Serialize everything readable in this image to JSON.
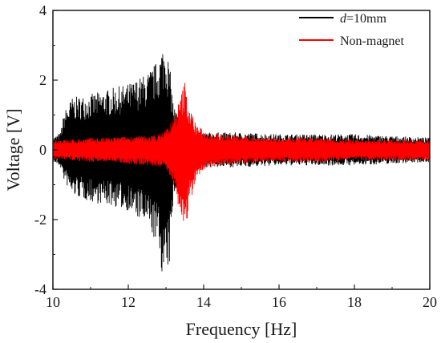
{
  "chart_data": {
    "type": "line",
    "xlabel": "Frequency [Hz]",
    "ylabel": "Voltage [V]",
    "xlim": [
      10,
      20
    ],
    "ylim": [
      -4,
      4
    ],
    "x_ticks": [
      10,
      12,
      14,
      16,
      18,
      20
    ],
    "y_ticks": [
      -4,
      -2,
      0,
      2,
      4
    ],
    "legend_position": "top-right",
    "grid": false,
    "series": [
      {
        "name": "d=10mm",
        "name_italic_part": "d",
        "name_rest": "=10mm",
        "color": "#000000",
        "style": "oscillating band; amplitude envelope",
        "x": [
          10.0,
          10.2,
          10.3,
          10.5,
          11.0,
          11.5,
          12.0,
          12.5,
          12.8,
          12.9,
          13.0,
          13.1,
          13.2,
          13.4,
          13.6,
          13.8,
          14.0,
          15.0,
          16.0,
          17.0,
          18.0,
          19.0,
          20.0
        ],
        "upper": [
          0.35,
          0.5,
          1.1,
          1.5,
          1.6,
          1.75,
          1.9,
          2.2,
          2.6,
          3.0,
          3.05,
          2.4,
          1.3,
          0.8,
          0.65,
          0.5,
          0.5,
          0.5,
          0.45,
          0.45,
          0.45,
          0.4,
          0.35
        ],
        "lower": [
          -0.35,
          -0.5,
          -0.9,
          -1.3,
          -1.5,
          -1.6,
          -1.75,
          -2.2,
          -2.8,
          -3.6,
          -3.8,
          -3.3,
          -1.3,
          -0.8,
          -0.65,
          -0.55,
          -0.5,
          -0.5,
          -0.45,
          -0.45,
          -0.45,
          -0.4,
          -0.35
        ]
      },
      {
        "name": "Non-magnet",
        "color": "#ff0000",
        "style": "oscillating band; amplitude envelope",
        "x": [
          10.0,
          10.5,
          11.0,
          11.5,
          12.0,
          12.5,
          12.8,
          13.0,
          13.2,
          13.4,
          13.5,
          13.6,
          13.8,
          14.0,
          14.5,
          15.0,
          16.0,
          17.0,
          18.0,
          19.0,
          20.0
        ],
        "upper": [
          0.3,
          0.3,
          0.35,
          0.35,
          0.4,
          0.4,
          0.45,
          0.6,
          0.9,
          1.6,
          2.0,
          1.3,
          0.75,
          0.55,
          0.45,
          0.4,
          0.35,
          0.35,
          0.3,
          0.3,
          0.3
        ],
        "lower": [
          -0.3,
          -0.3,
          -0.35,
          -0.35,
          -0.4,
          -0.45,
          -0.5,
          -0.6,
          -0.9,
          -2.0,
          -2.6,
          -1.7,
          -0.9,
          -0.55,
          -0.45,
          -0.4,
          -0.35,
          -0.35,
          -0.3,
          -0.3,
          -0.3
        ]
      }
    ]
  }
}
